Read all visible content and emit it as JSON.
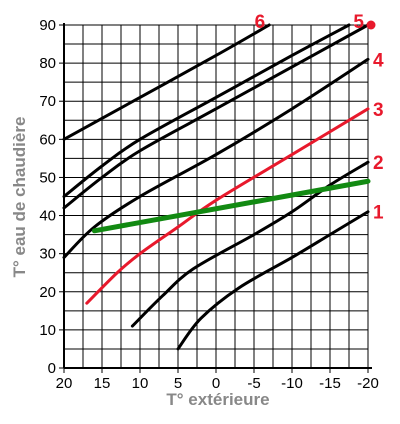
{
  "chart_data": {
    "type": "line",
    "xlabel": "T° extérieure",
    "ylabel": "T° eau de chaudière",
    "xlim": [
      20,
      -20
    ],
    "ylim": [
      0,
      90
    ],
    "x_tick_labels": [
      "20",
      "15",
      "10",
      "5",
      "0",
      "-5",
      "-10",
      "-15",
      "-20"
    ],
    "y_tick_labels": [
      "0",
      "10",
      "20",
      "30",
      "40",
      "50",
      "60",
      "70",
      "80",
      "90"
    ],
    "grid": true,
    "x_minor_step": 2.5,
    "y_minor_step": 5,
    "series": [
      {
        "name": "1",
        "color": "#000000",
        "label_color": "#e8192c",
        "points": [
          [
            5,
            5
          ],
          [
            2,
            13
          ],
          [
            -3,
            21
          ],
          [
            -10,
            29
          ],
          [
            -15,
            35
          ],
          [
            -20,
            41
          ]
        ]
      },
      {
        "name": "2",
        "color": "#000000",
        "label_color": "#e8192c",
        "points": [
          [
            11,
            11
          ],
          [
            7,
            19
          ],
          [
            3,
            26
          ],
          [
            -5,
            35
          ],
          [
            -10,
            41
          ],
          [
            -15,
            48
          ],
          [
            -20,
            54
          ]
        ]
      },
      {
        "name": "3",
        "color": "#e8192c",
        "label_color": "#e8192c",
        "points": [
          [
            17,
            17
          ],
          [
            13,
            25
          ],
          [
            10,
            30
          ],
          [
            5,
            37
          ],
          [
            0,
            44
          ],
          [
            -10,
            56
          ],
          [
            -20,
            68
          ]
        ]
      },
      {
        "name": "4",
        "color": "#000000",
        "label_color": "#e8192c",
        "points": [
          [
            20,
            29
          ],
          [
            16,
            37
          ],
          [
            10,
            45
          ],
          [
            0,
            56
          ],
          [
            -10,
            68
          ],
          [
            -20,
            81
          ]
        ]
      },
      {
        "name": "5",
        "color": "#000000",
        "label_color": "#e8192c",
        "points": [
          [
            20,
            42
          ],
          [
            15,
            50
          ],
          [
            10,
            57
          ],
          [
            0,
            68
          ],
          [
            -10,
            79
          ],
          [
            -20,
            90
          ]
        ]
      },
      {
        "name": "",
        "color": "#000000",
        "label_color": "#e8192c",
        "points": [
          [
            20,
            45
          ],
          [
            15,
            53
          ],
          [
            10,
            60
          ],
          [
            0,
            71
          ],
          [
            -10,
            82
          ],
          [
            -17.5,
            90
          ]
        ]
      },
      {
        "name": "6",
        "color": "#000000",
        "label_color": "#e8192c",
        "points": [
          [
            20,
            60
          ],
          [
            10,
            71
          ],
          [
            0,
            82
          ],
          [
            -7,
            90
          ]
        ]
      },
      {
        "name": "",
        "color": "#128a12",
        "label_color": "#128a12",
        "points": [
          [
            16,
            36
          ],
          [
            -20,
            49
          ]
        ]
      }
    ],
    "marker": {
      "x": -20,
      "y": 90,
      "color": "#e8192c"
    }
  }
}
